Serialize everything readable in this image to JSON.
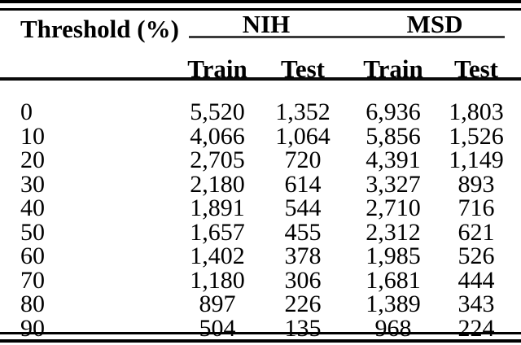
{
  "page": {
    "background_color": "#ffffff",
    "text_color": "#000000",
    "rule_color": "#000000"
  },
  "table": {
    "col1_header": "Threshold (%)",
    "group_headers": [
      "NIH",
      "MSD"
    ],
    "subheaders": [
      "Train",
      "Test",
      "Train",
      "Test"
    ],
    "rows": [
      {
        "threshold": "0",
        "values": [
          "5,520",
          "1,352",
          "6,936",
          "1,803"
        ]
      },
      {
        "threshold": "10",
        "values": [
          "4,066",
          "1,064",
          "5,856",
          "1,526"
        ]
      },
      {
        "threshold": "20",
        "values": [
          "2,705",
          "720",
          "4,391",
          "1,149"
        ]
      },
      {
        "threshold": "30",
        "values": [
          "2,180",
          "614",
          "3,327",
          "893"
        ]
      },
      {
        "threshold": "40",
        "values": [
          "1,891",
          "544",
          "2,710",
          "716"
        ]
      },
      {
        "threshold": "50",
        "values": [
          "1,657",
          "455",
          "2,312",
          "621"
        ]
      },
      {
        "threshold": "60",
        "values": [
          "1,402",
          "378",
          "1,985",
          "526"
        ]
      },
      {
        "threshold": "70",
        "values": [
          "1,180",
          "306",
          "1,681",
          "444"
        ]
      },
      {
        "threshold": "80",
        "values": [
          "897",
          "226",
          "1,389",
          "343"
        ]
      },
      {
        "threshold": "90",
        "values": [
          "504",
          "135",
          "968",
          "224"
        ]
      }
    ]
  }
}
